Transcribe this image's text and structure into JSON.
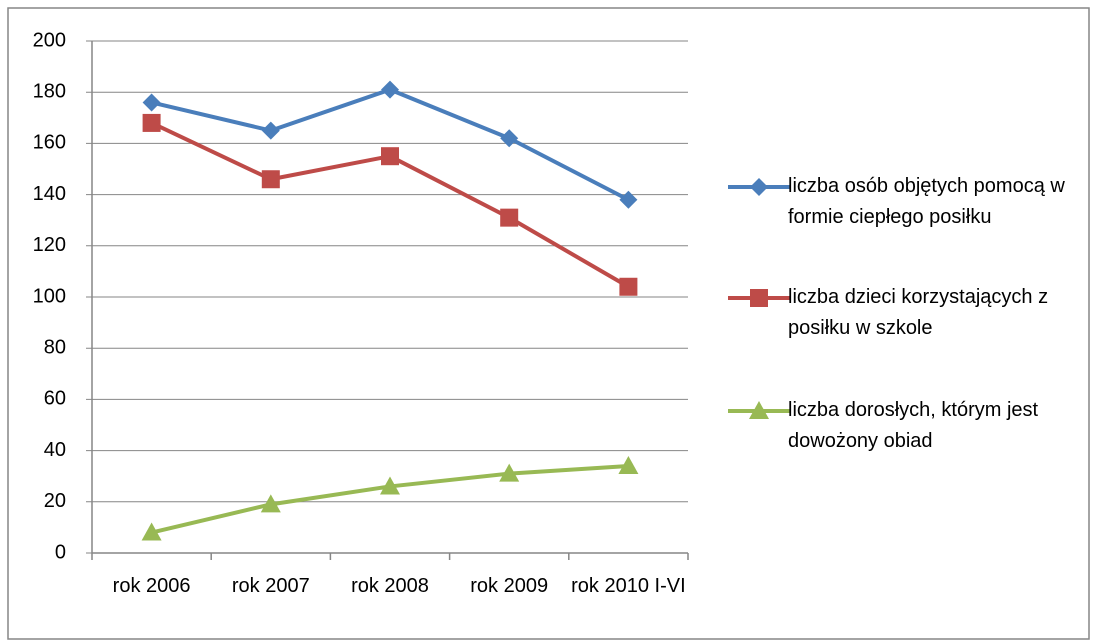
{
  "chart_data": {
    "type": "line",
    "categories": [
      "rok 2006",
      "rok 2007",
      "rok 2008",
      "rok 2009",
      "rok 2010 I-VI"
    ],
    "series": [
      {
        "name": "liczba osób objętych pomocą w formie ciepłego posiłku",
        "color": "#4a7ebb",
        "marker": "diamond",
        "values": [
          176,
          165,
          181,
          162,
          138
        ]
      },
      {
        "name": "liczba dzieci korzystających z posiłku w szkole",
        "color": "#be4b48",
        "marker": "square",
        "values": [
          168,
          146,
          155,
          131,
          104
        ]
      },
      {
        "name": "liczba dorosłych, którym jest dowożony obiad",
        "color": "#98b954",
        "marker": "triangle",
        "values": [
          8,
          19,
          26,
          31,
          34
        ]
      }
    ],
    "ylim": [
      0,
      200
    ],
    "yticks": [
      0,
      20,
      40,
      60,
      80,
      100,
      120,
      140,
      160,
      180,
      200
    ],
    "grid": true,
    "legend": "right"
  }
}
